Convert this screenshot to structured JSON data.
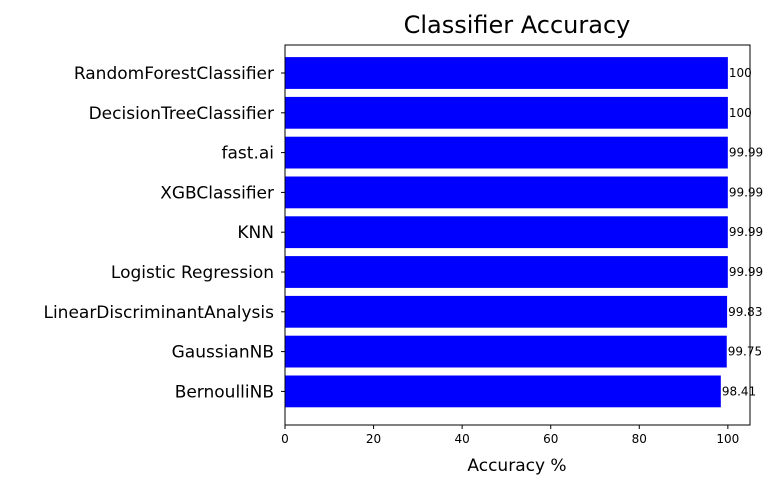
{
  "chart_data": {
    "type": "bar",
    "orientation": "horizontal",
    "title": "Classifier Accuracy",
    "xlabel": "Accuracy %",
    "ylabel": "",
    "xlim": [
      0,
      105
    ],
    "xticks": [
      0,
      20,
      40,
      60,
      80,
      100
    ],
    "bar_color": "#0000ff",
    "grid": false,
    "categories": [
      "RandomForestClassifier",
      "DecisionTreeClassifier",
      "fast.ai",
      "XGBClassifier",
      "KNN",
      "Logistic Regression",
      "LinearDiscriminantAnalysis",
      "GaussianNB",
      "BernoulliNB"
    ],
    "values": [
      100,
      100,
      99.99,
      99.99,
      99.99,
      99.99,
      99.83,
      99.75,
      98.41
    ],
    "value_labels": [
      "100",
      "100",
      "99.99",
      "99.99",
      "99.99",
      "99.99",
      "99.83",
      "99.75",
      "98.41"
    ]
  }
}
